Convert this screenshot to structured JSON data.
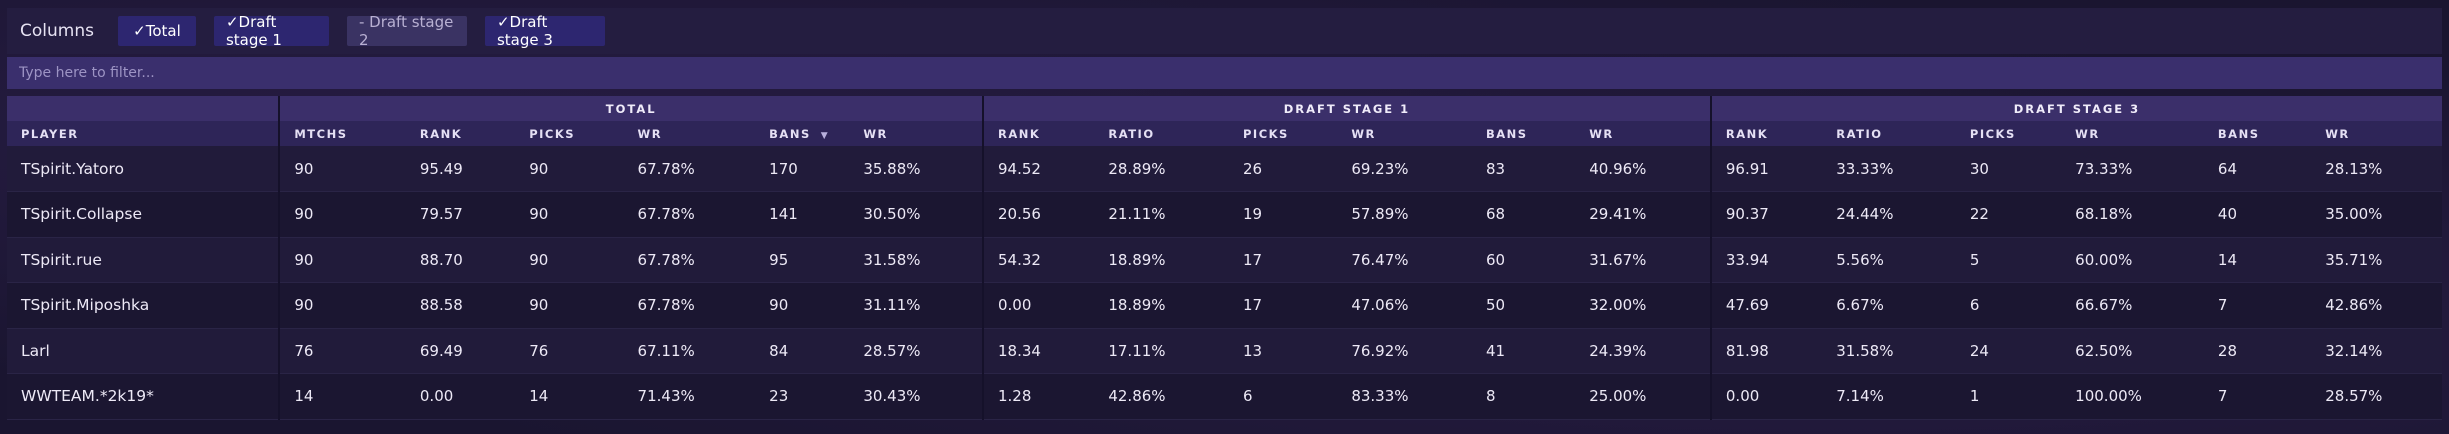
{
  "columns": {
    "label": "Columns",
    "toggles": [
      {
        "label": "✓Total",
        "on": true
      },
      {
        "label": "✓Draft stage 1",
        "on": true
      },
      {
        "label": "- Draft stage 2",
        "on": false
      },
      {
        "label": "✓Draft stage 3",
        "on": true
      }
    ]
  },
  "filter": {
    "placeholder": "Type here to filter..."
  },
  "table": {
    "groups": [
      "TOTAL",
      "DRAFT STAGE 1",
      "DRAFT STAGE 3"
    ],
    "player_header": "PLAYER",
    "total_headers": [
      "MTCHS",
      "RANK",
      "PICKS",
      "WR",
      "BANS",
      "WR"
    ],
    "ds1_headers": [
      "RANK",
      "RATIO",
      "PICKS",
      "WR",
      "BANS",
      "WR"
    ],
    "ds3_headers": [
      "RANK",
      "RATIO",
      "PICKS",
      "WR",
      "BANS",
      "WR"
    ],
    "sort_indicator": "▼",
    "rows": [
      {
        "player": "TSpirit.Yatoro",
        "total": [
          "90",
          "95.49",
          "90",
          "67.78%",
          "170",
          "35.88%"
        ],
        "ds1": [
          "94.52",
          "28.89%",
          "26",
          "69.23%",
          "83",
          "40.96%"
        ],
        "ds3": [
          "96.91",
          "33.33%",
          "30",
          "73.33%",
          "64",
          "28.13%"
        ]
      },
      {
        "player": "TSpirit.Collapse",
        "total": [
          "90",
          "79.57",
          "90",
          "67.78%",
          "141",
          "30.50%"
        ],
        "ds1": [
          "20.56",
          "21.11%",
          "19",
          "57.89%",
          "68",
          "29.41%"
        ],
        "ds3": [
          "90.37",
          "24.44%",
          "22",
          "68.18%",
          "40",
          "35.00%"
        ]
      },
      {
        "player": "TSpirit.rue",
        "total": [
          "90",
          "88.70",
          "90",
          "67.78%",
          "95",
          "31.58%"
        ],
        "ds1": [
          "54.32",
          "18.89%",
          "17",
          "76.47%",
          "60",
          "31.67%"
        ],
        "ds3": [
          "33.94",
          "5.56%",
          "5",
          "60.00%",
          "14",
          "35.71%"
        ]
      },
      {
        "player": "TSpirit.Miposhka",
        "total": [
          "90",
          "88.58",
          "90",
          "67.78%",
          "90",
          "31.11%"
        ],
        "ds1": [
          "0.00",
          "18.89%",
          "17",
          "47.06%",
          "50",
          "32.00%"
        ],
        "ds3": [
          "47.69",
          "6.67%",
          "6",
          "66.67%",
          "7",
          "42.86%"
        ]
      },
      {
        "player": "Larl",
        "total": [
          "76",
          "69.49",
          "76",
          "67.11%",
          "84",
          "28.57%"
        ],
        "ds1": [
          "18.34",
          "17.11%",
          "13",
          "76.92%",
          "41",
          "24.39%"
        ],
        "ds3": [
          "81.98",
          "31.58%",
          "24",
          "62.50%",
          "28",
          "32.14%"
        ]
      },
      {
        "player": "WWTEAM.*2k19*",
        "total": [
          "14",
          "0.00",
          "14",
          "71.43%",
          "23",
          "30.43%"
        ],
        "ds1": [
          "1.28",
          "42.86%",
          "6",
          "83.33%",
          "8",
          "25.00%"
        ],
        "ds3": [
          "0.00",
          "7.14%",
          "1",
          "100.00%",
          "7",
          "28.57%"
        ]
      }
    ]
  }
}
